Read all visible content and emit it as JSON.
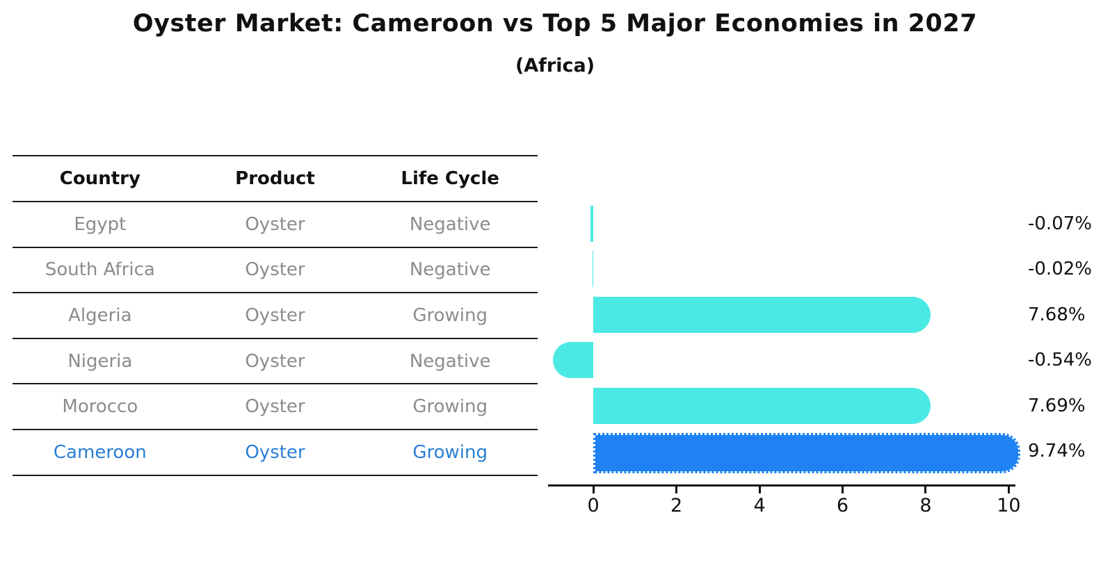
{
  "title": "Oyster Market: Cameroon vs Top 5 Major Economies in 2027",
  "subtitle": "(Africa)",
  "table": {
    "headers": [
      "Country",
      "Product",
      "Life Cycle"
    ],
    "rows": [
      {
        "country": "Egypt",
        "product": "Oyster",
        "life_cycle": "Negative",
        "highlight": false
      },
      {
        "country": "South Africa",
        "product": "Oyster",
        "life_cycle": "Negative",
        "highlight": false
      },
      {
        "country": "Algeria",
        "product": "Oyster",
        "life_cycle": "Growing",
        "highlight": false
      },
      {
        "country": "Nigeria",
        "product": "Oyster",
        "life_cycle": "Negative",
        "highlight": false
      },
      {
        "country": "Morocco",
        "product": "Oyster",
        "life_cycle": "Growing",
        "highlight": false
      },
      {
        "country": "Cameroon",
        "product": "Oyster",
        "life_cycle": "Growing",
        "highlight": true
      }
    ]
  },
  "chart_data": {
    "type": "bar",
    "orientation": "horizontal",
    "title": "Oyster Market: Cameroon vs Top 5 Major Economies in 2027",
    "subtitle": "(Africa)",
    "categories": [
      "Egypt",
      "South Africa",
      "Algeria",
      "Nigeria",
      "Morocco",
      "Cameroon"
    ],
    "values": [
      -0.07,
      -0.02,
      7.68,
      -0.54,
      7.69,
      9.74
    ],
    "value_labels": [
      "-0.07%",
      "-0.02%",
      "7.68%",
      "-0.54%",
      "7.69%",
      "9.74%"
    ],
    "units": "%",
    "x_ticks": [
      0,
      2,
      4,
      6,
      8,
      10
    ],
    "xlim": [
      -1.09,
      10.16
    ],
    "grid": false,
    "legend": "none",
    "highlight_index": 5,
    "colors": {
      "bar_default": "#4BE9E4",
      "bar_highlight": "#1E82F2",
      "highlight_text": "#2b7fd4",
      "body_text": "#8c8c8c",
      "axis": "#111111"
    }
  }
}
